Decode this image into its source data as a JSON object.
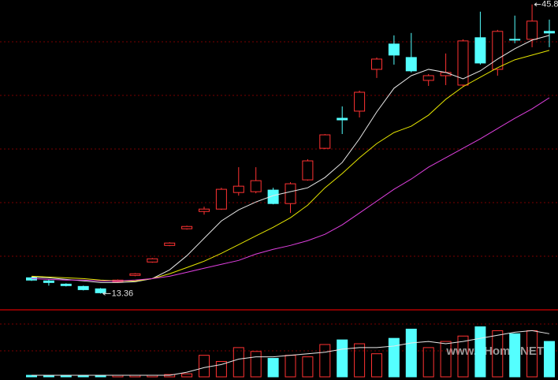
{
  "chart_data": {
    "type": "candlestick",
    "open": [
      15.13,
      14.78,
      14.42,
      14.16,
      13.89,
      14.69,
      15.4,
      16.9,
      18.76,
      20.63,
      22.57,
      22.84,
      24.7,
      24.79,
      24.97,
      23.46,
      26.12,
      29.66,
      33.03,
      33.83,
      38.52,
      41.36,
      39.85,
      37.28,
      37.81,
      36.75,
      42.07,
      38.52,
      41.89,
      41.89,
      42.78
    ],
    "close": [
      14.87,
      14.6,
      14.25,
      13.8,
      13.45,
      14.87,
      15.58,
      17.26,
      19.03,
      20.89,
      22.84,
      25.06,
      25.41,
      26.03,
      23.46,
      25.68,
      28.25,
      31.17,
      32.85,
      35.95,
      39.67,
      40.12,
      38.35,
      37.81,
      38.17,
      41.71,
      39.23,
      42.78,
      41.8,
      43.93,
      42.6
    ],
    "high": [
      15.21,
      14.95,
      14.51,
      14.25,
      13.98,
      14.95,
      15.66,
      17.35,
      19.12,
      20.98,
      23.11,
      25.23,
      27.54,
      27.54,
      25.23,
      25.85,
      28.43,
      31.26,
      34.36,
      36.13,
      39.85,
      42.33,
      42.6,
      37.99,
      40.3,
      41.89,
      44.99,
      42.95,
      44.55,
      45.8,
      44.1
    ],
    "low": [
      14.77,
      14.25,
      14.16,
      13.71,
      13.36,
      14.6,
      15.31,
      16.82,
      18.68,
      20.54,
      22.22,
      22.75,
      24.35,
      24.61,
      23.37,
      22.4,
      26.03,
      29.57,
      31.26,
      33.12,
      37.55,
      39.05,
      38.17,
      36.66,
      36.75,
      36.57,
      39.05,
      37.81,
      41.45,
      41.0,
      41.0
    ],
    "up_color": "#ff3232",
    "down_color": "#54ffff",
    "ylim": [
      11.8,
      46.3
    ],
    "moving_averages": [
      {
        "color": "#e8e8e8",
        "values": [
          15.22,
          15.13,
          14.95,
          14.78,
          14.6,
          14.6,
          14.69,
          15.04,
          16.02,
          17.61,
          19.56,
          21.51,
          22.75,
          23.64,
          24.35,
          24.79,
          25.23,
          26.38,
          28.07,
          30.73,
          33.74,
          36.4,
          37.81,
          38.52,
          38.17,
          37.46,
          38.35,
          39.67,
          40.83,
          41.8,
          42.33
        ]
      },
      {
        "color": "#e6e600",
        "values": [
          15.31,
          15.22,
          15.13,
          15.04,
          14.87,
          14.78,
          14.78,
          15.04,
          15.58,
          16.28,
          16.99,
          17.88,
          18.85,
          19.83,
          20.8,
          21.87,
          23.28,
          25.23,
          26.83,
          28.6,
          30.19,
          31.43,
          32.14,
          33.38,
          35.16,
          36.57,
          37.64,
          38.7,
          39.59,
          40.12,
          40.65
        ]
      },
      {
        "color": "#e040e0",
        "values": [
          15.04,
          14.95,
          14.87,
          14.87,
          14.78,
          14.78,
          14.87,
          15.04,
          15.31,
          15.75,
          16.2,
          16.64,
          17.08,
          17.79,
          18.32,
          18.76,
          19.3,
          20.01,
          21.07,
          22.4,
          23.73,
          25.06,
          26.21,
          27.54,
          28.6,
          29.66,
          30.73,
          31.88,
          33.03,
          34.09,
          35.33
        ]
      }
    ],
    "volume": [
      2,
      2,
      2,
      2,
      2,
      2,
      2,
      2,
      3,
      4,
      28,
      20,
      38,
      33,
      24,
      28,
      26,
      42,
      48,
      43,
      30,
      50,
      62,
      38,
      46,
      53,
      65,
      60,
      56,
      60,
      46
    ],
    "volume_ylim": [
      0,
      85
    ],
    "volume_ma": {
      "color": "#e8e8e8",
      "values": [
        2,
        2,
        2,
        2,
        2,
        2,
        2,
        2,
        2,
        6,
        12,
        16,
        23,
        26,
        26,
        28,
        30,
        32,
        36,
        38,
        38,
        40,
        44,
        46,
        43,
        46,
        50,
        54,
        58,
        60,
        56
      ]
    },
    "high_label": "45.8",
    "low_label": "13.36",
    "watermark": "www.pHome.NET"
  }
}
